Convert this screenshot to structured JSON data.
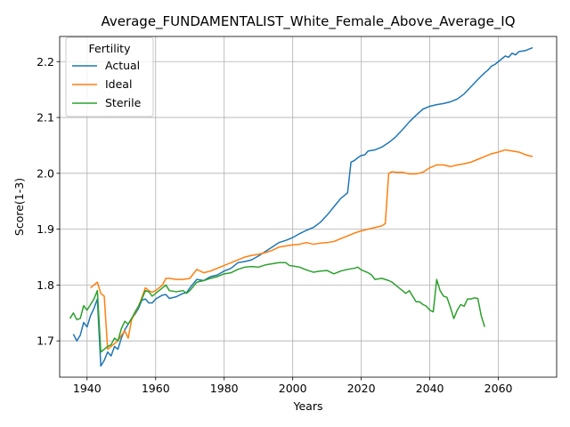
{
  "chart_data": {
    "type": "line",
    "title": "Average_FUNDAMENTALIST_White_Female_Above_Average_IQ",
    "xlabel": "Years",
    "ylabel": "Score(1-3)",
    "xlim": [
      1932,
      2077
    ],
    "ylim": [
      1.635,
      2.245
    ],
    "x_ticks": [
      1940,
      1960,
      1980,
      2000,
      2020,
      2040,
      2060
    ],
    "y_ticks": [
      1.7,
      1.8,
      1.9,
      2.0,
      2.1,
      2.2
    ],
    "y_tick_labels": [
      "1.7",
      "1.8",
      "1.9",
      "2.0",
      "2.1",
      "2.2"
    ],
    "grid": true,
    "legend": {
      "title": "Fertility",
      "position": "top-left"
    },
    "series": [
      {
        "name": "Actual",
        "color": "#1f77b4",
        "points": [
          [
            1936,
            1.712
          ],
          [
            1937,
            1.7
          ],
          [
            1938,
            1.71
          ],
          [
            1939,
            1.733
          ],
          [
            1940,
            1.725
          ],
          [
            1941,
            1.745
          ],
          [
            1942,
            1.758
          ],
          [
            1943,
            1.775
          ],
          [
            1944,
            1.655
          ],
          [
            1945,
            1.665
          ],
          [
            1946,
            1.68
          ],
          [
            1947,
            1.673
          ],
          [
            1948,
            1.69
          ],
          [
            1949,
            1.685
          ],
          [
            1950,
            1.705
          ],
          [
            1951,
            1.72
          ],
          [
            1952,
            1.73
          ],
          [
            1953,
            1.74
          ],
          [
            1954,
            1.748
          ],
          [
            1955,
            1.758
          ],
          [
            1956,
            1.773
          ],
          [
            1957,
            1.775
          ],
          [
            1958,
            1.768
          ],
          [
            1959,
            1.768
          ],
          [
            1960,
            1.775
          ],
          [
            1962,
            1.782
          ],
          [
            1963,
            1.783
          ],
          [
            1964,
            1.776
          ],
          [
            1966,
            1.779
          ],
          [
            1968,
            1.785
          ],
          [
            1969,
            1.786
          ],
          [
            1970,
            1.795
          ],
          [
            1972,
            1.81
          ],
          [
            1974,
            1.808
          ],
          [
            1976,
            1.815
          ],
          [
            1978,
            1.818
          ],
          [
            1980,
            1.825
          ],
          [
            1982,
            1.83
          ],
          [
            1984,
            1.84
          ],
          [
            1986,
            1.842
          ],
          [
            1988,
            1.845
          ],
          [
            1990,
            1.852
          ],
          [
            1992,
            1.86
          ],
          [
            1994,
            1.868
          ],
          [
            1996,
            1.876
          ],
          [
            1998,
            1.88
          ],
          [
            2000,
            1.885
          ],
          [
            2002,
            1.892
          ],
          [
            2004,
            1.898
          ],
          [
            2006,
            1.903
          ],
          [
            2008,
            1.912
          ],
          [
            2010,
            1.925
          ],
          [
            2012,
            1.94
          ],
          [
            2014,
            1.955
          ],
          [
            2016,
            1.965
          ],
          [
            2017,
            2.02
          ],
          [
            2018,
            2.023
          ],
          [
            2019,
            2.028
          ],
          [
            2020,
            2.032
          ],
          [
            2021,
            2.033
          ],
          [
            2022,
            2.04
          ],
          [
            2024,
            2.042
          ],
          [
            2026,
            2.047
          ],
          [
            2028,
            2.055
          ],
          [
            2030,
            2.065
          ],
          [
            2032,
            2.078
          ],
          [
            2034,
            2.092
          ],
          [
            2036,
            2.104
          ],
          [
            2038,
            2.115
          ],
          [
            2040,
            2.12
          ],
          [
            2042,
            2.123
          ],
          [
            2044,
            2.125
          ],
          [
            2046,
            2.128
          ],
          [
            2048,
            2.133
          ],
          [
            2050,
            2.142
          ],
          [
            2052,
            2.155
          ],
          [
            2054,
            2.168
          ],
          [
            2056,
            2.18
          ],
          [
            2057,
            2.185
          ],
          [
            2058,
            2.192
          ],
          [
            2059,
            2.195
          ],
          [
            2060,
            2.2
          ],
          [
            2061,
            2.205
          ],
          [
            2062,
            2.21
          ],
          [
            2063,
            2.208
          ],
          [
            2064,
            2.215
          ],
          [
            2065,
            2.212
          ],
          [
            2066,
            2.218
          ],
          [
            2068,
            2.22
          ],
          [
            2070,
            2.225
          ]
        ]
      },
      {
        "name": "Ideal",
        "color": "#ff7f0e",
        "points": [
          [
            1941,
            1.795
          ],
          [
            1942,
            1.8
          ],
          [
            1943,
            1.805
          ],
          [
            1944,
            1.785
          ],
          [
            1945,
            1.78
          ],
          [
            1946,
            1.685
          ],
          [
            1947,
            1.69
          ],
          [
            1948,
            1.695
          ],
          [
            1949,
            1.7
          ],
          [
            1950,
            1.71
          ],
          [
            1951,
            1.718
          ],
          [
            1952,
            1.705
          ],
          [
            1953,
            1.738
          ],
          [
            1954,
            1.75
          ],
          [
            1955,
            1.762
          ],
          [
            1956,
            1.778
          ],
          [
            1957,
            1.795
          ],
          [
            1958,
            1.79
          ],
          [
            1959,
            1.787
          ],
          [
            1960,
            1.79
          ],
          [
            1962,
            1.8
          ],
          [
            1963,
            1.812
          ],
          [
            1964,
            1.812
          ],
          [
            1966,
            1.81
          ],
          [
            1968,
            1.81
          ],
          [
            1970,
            1.812
          ],
          [
            1972,
            1.828
          ],
          [
            1974,
            1.822
          ],
          [
            1976,
            1.825
          ],
          [
            1978,
            1.83
          ],
          [
            1980,
            1.835
          ],
          [
            1982,
            1.84
          ],
          [
            1984,
            1.845
          ],
          [
            1986,
            1.85
          ],
          [
            1988,
            1.853
          ],
          [
            1990,
            1.855
          ],
          [
            1992,
            1.858
          ],
          [
            1994,
            1.862
          ],
          [
            1996,
            1.868
          ],
          [
            1998,
            1.87
          ],
          [
            2000,
            1.872
          ],
          [
            2002,
            1.873
          ],
          [
            2004,
            1.876
          ],
          [
            2006,
            1.873
          ],
          [
            2008,
            1.875
          ],
          [
            2010,
            1.876
          ],
          [
            2012,
            1.878
          ],
          [
            2014,
            1.883
          ],
          [
            2016,
            1.888
          ],
          [
            2018,
            1.893
          ],
          [
            2020,
            1.897
          ],
          [
            2022,
            1.9
          ],
          [
            2024,
            1.903
          ],
          [
            2026,
            1.906
          ],
          [
            2027,
            1.91
          ],
          [
            2028,
            2.0
          ],
          [
            2029,
            2.003
          ],
          [
            2030,
            2.002
          ],
          [
            2032,
            2.002
          ],
          [
            2034,
            1.999
          ],
          [
            2036,
            1.999
          ],
          [
            2038,
            2.002
          ],
          [
            2040,
            2.01
          ],
          [
            2042,
            2.015
          ],
          [
            2044,
            2.015
          ],
          [
            2046,
            2.012
          ],
          [
            2048,
            2.015
          ],
          [
            2050,
            2.017
          ],
          [
            2052,
            2.02
          ],
          [
            2054,
            2.025
          ],
          [
            2056,
            2.03
          ],
          [
            2058,
            2.035
          ],
          [
            2060,
            2.038
          ],
          [
            2062,
            2.042
          ],
          [
            2064,
            2.04
          ],
          [
            2066,
            2.038
          ],
          [
            2068,
            2.033
          ],
          [
            2070,
            2.03
          ]
        ]
      },
      {
        "name": "Sterile",
        "color": "#2ca02c",
        "points": [
          [
            1935,
            1.74
          ],
          [
            1936,
            1.75
          ],
          [
            1937,
            1.738
          ],
          [
            1938,
            1.74
          ],
          [
            1939,
            1.763
          ],
          [
            1940,
            1.755
          ],
          [
            1941,
            1.765
          ],
          [
            1942,
            1.775
          ],
          [
            1943,
            1.79
          ],
          [
            1944,
            1.68
          ],
          [
            1945,
            1.685
          ],
          [
            1946,
            1.69
          ],
          [
            1947,
            1.693
          ],
          [
            1948,
            1.705
          ],
          [
            1949,
            1.7
          ],
          [
            1950,
            1.722
          ],
          [
            1951,
            1.735
          ],
          [
            1952,
            1.73
          ],
          [
            1953,
            1.74
          ],
          [
            1954,
            1.752
          ],
          [
            1955,
            1.762
          ],
          [
            1956,
            1.775
          ],
          [
            1957,
            1.79
          ],
          [
            1958,
            1.788
          ],
          [
            1959,
            1.78
          ],
          [
            1960,
            1.785
          ],
          [
            1962,
            1.795
          ],
          [
            1963,
            1.8
          ],
          [
            1964,
            1.79
          ],
          [
            1966,
            1.788
          ],
          [
            1968,
            1.79
          ],
          [
            1969,
            1.785
          ],
          [
            1970,
            1.79
          ],
          [
            1972,
            1.805
          ],
          [
            1974,
            1.808
          ],
          [
            1976,
            1.812
          ],
          [
            1978,
            1.815
          ],
          [
            1980,
            1.82
          ],
          [
            1982,
            1.822
          ],
          [
            1984,
            1.828
          ],
          [
            1986,
            1.832
          ],
          [
            1988,
            1.833
          ],
          [
            1990,
            1.832
          ],
          [
            1992,
            1.836
          ],
          [
            1994,
            1.838
          ],
          [
            1996,
            1.84
          ],
          [
            1998,
            1.84
          ],
          [
            1999,
            1.835
          ],
          [
            2000,
            1.834
          ],
          [
            2002,
            1.832
          ],
          [
            2004,
            1.827
          ],
          [
            2006,
            1.823
          ],
          [
            2008,
            1.825
          ],
          [
            2010,
            1.826
          ],
          [
            2012,
            1.82
          ],
          [
            2014,
            1.825
          ],
          [
            2016,
            1.828
          ],
          [
            2018,
            1.83
          ],
          [
            2019,
            1.832
          ],
          [
            2020,
            1.827
          ],
          [
            2022,
            1.822
          ],
          [
            2023,
            1.818
          ],
          [
            2024,
            1.81
          ],
          [
            2026,
            1.812
          ],
          [
            2028,
            1.808
          ],
          [
            2029,
            1.805
          ],
          [
            2030,
            1.8
          ],
          [
            2031,
            1.795
          ],
          [
            2032,
            1.79
          ],
          [
            2033,
            1.785
          ],
          [
            2034,
            1.79
          ],
          [
            2036,
            1.77
          ],
          [
            2037,
            1.77
          ],
          [
            2038,
            1.765
          ],
          [
            2039,
            1.762
          ],
          [
            2040,
            1.755
          ],
          [
            2041,
            1.752
          ],
          [
            2042,
            1.81
          ],
          [
            2043,
            1.79
          ],
          [
            2044,
            1.78
          ],
          [
            2045,
            1.778
          ],
          [
            2046,
            1.76
          ],
          [
            2047,
            1.74
          ],
          [
            2048,
            1.755
          ],
          [
            2049,
            1.765
          ],
          [
            2050,
            1.762
          ],
          [
            2051,
            1.775
          ],
          [
            2052,
            1.775
          ],
          [
            2053,
            1.777
          ],
          [
            2054,
            1.776
          ],
          [
            2055,
            1.745
          ],
          [
            2056,
            1.725
          ]
        ]
      }
    ]
  }
}
